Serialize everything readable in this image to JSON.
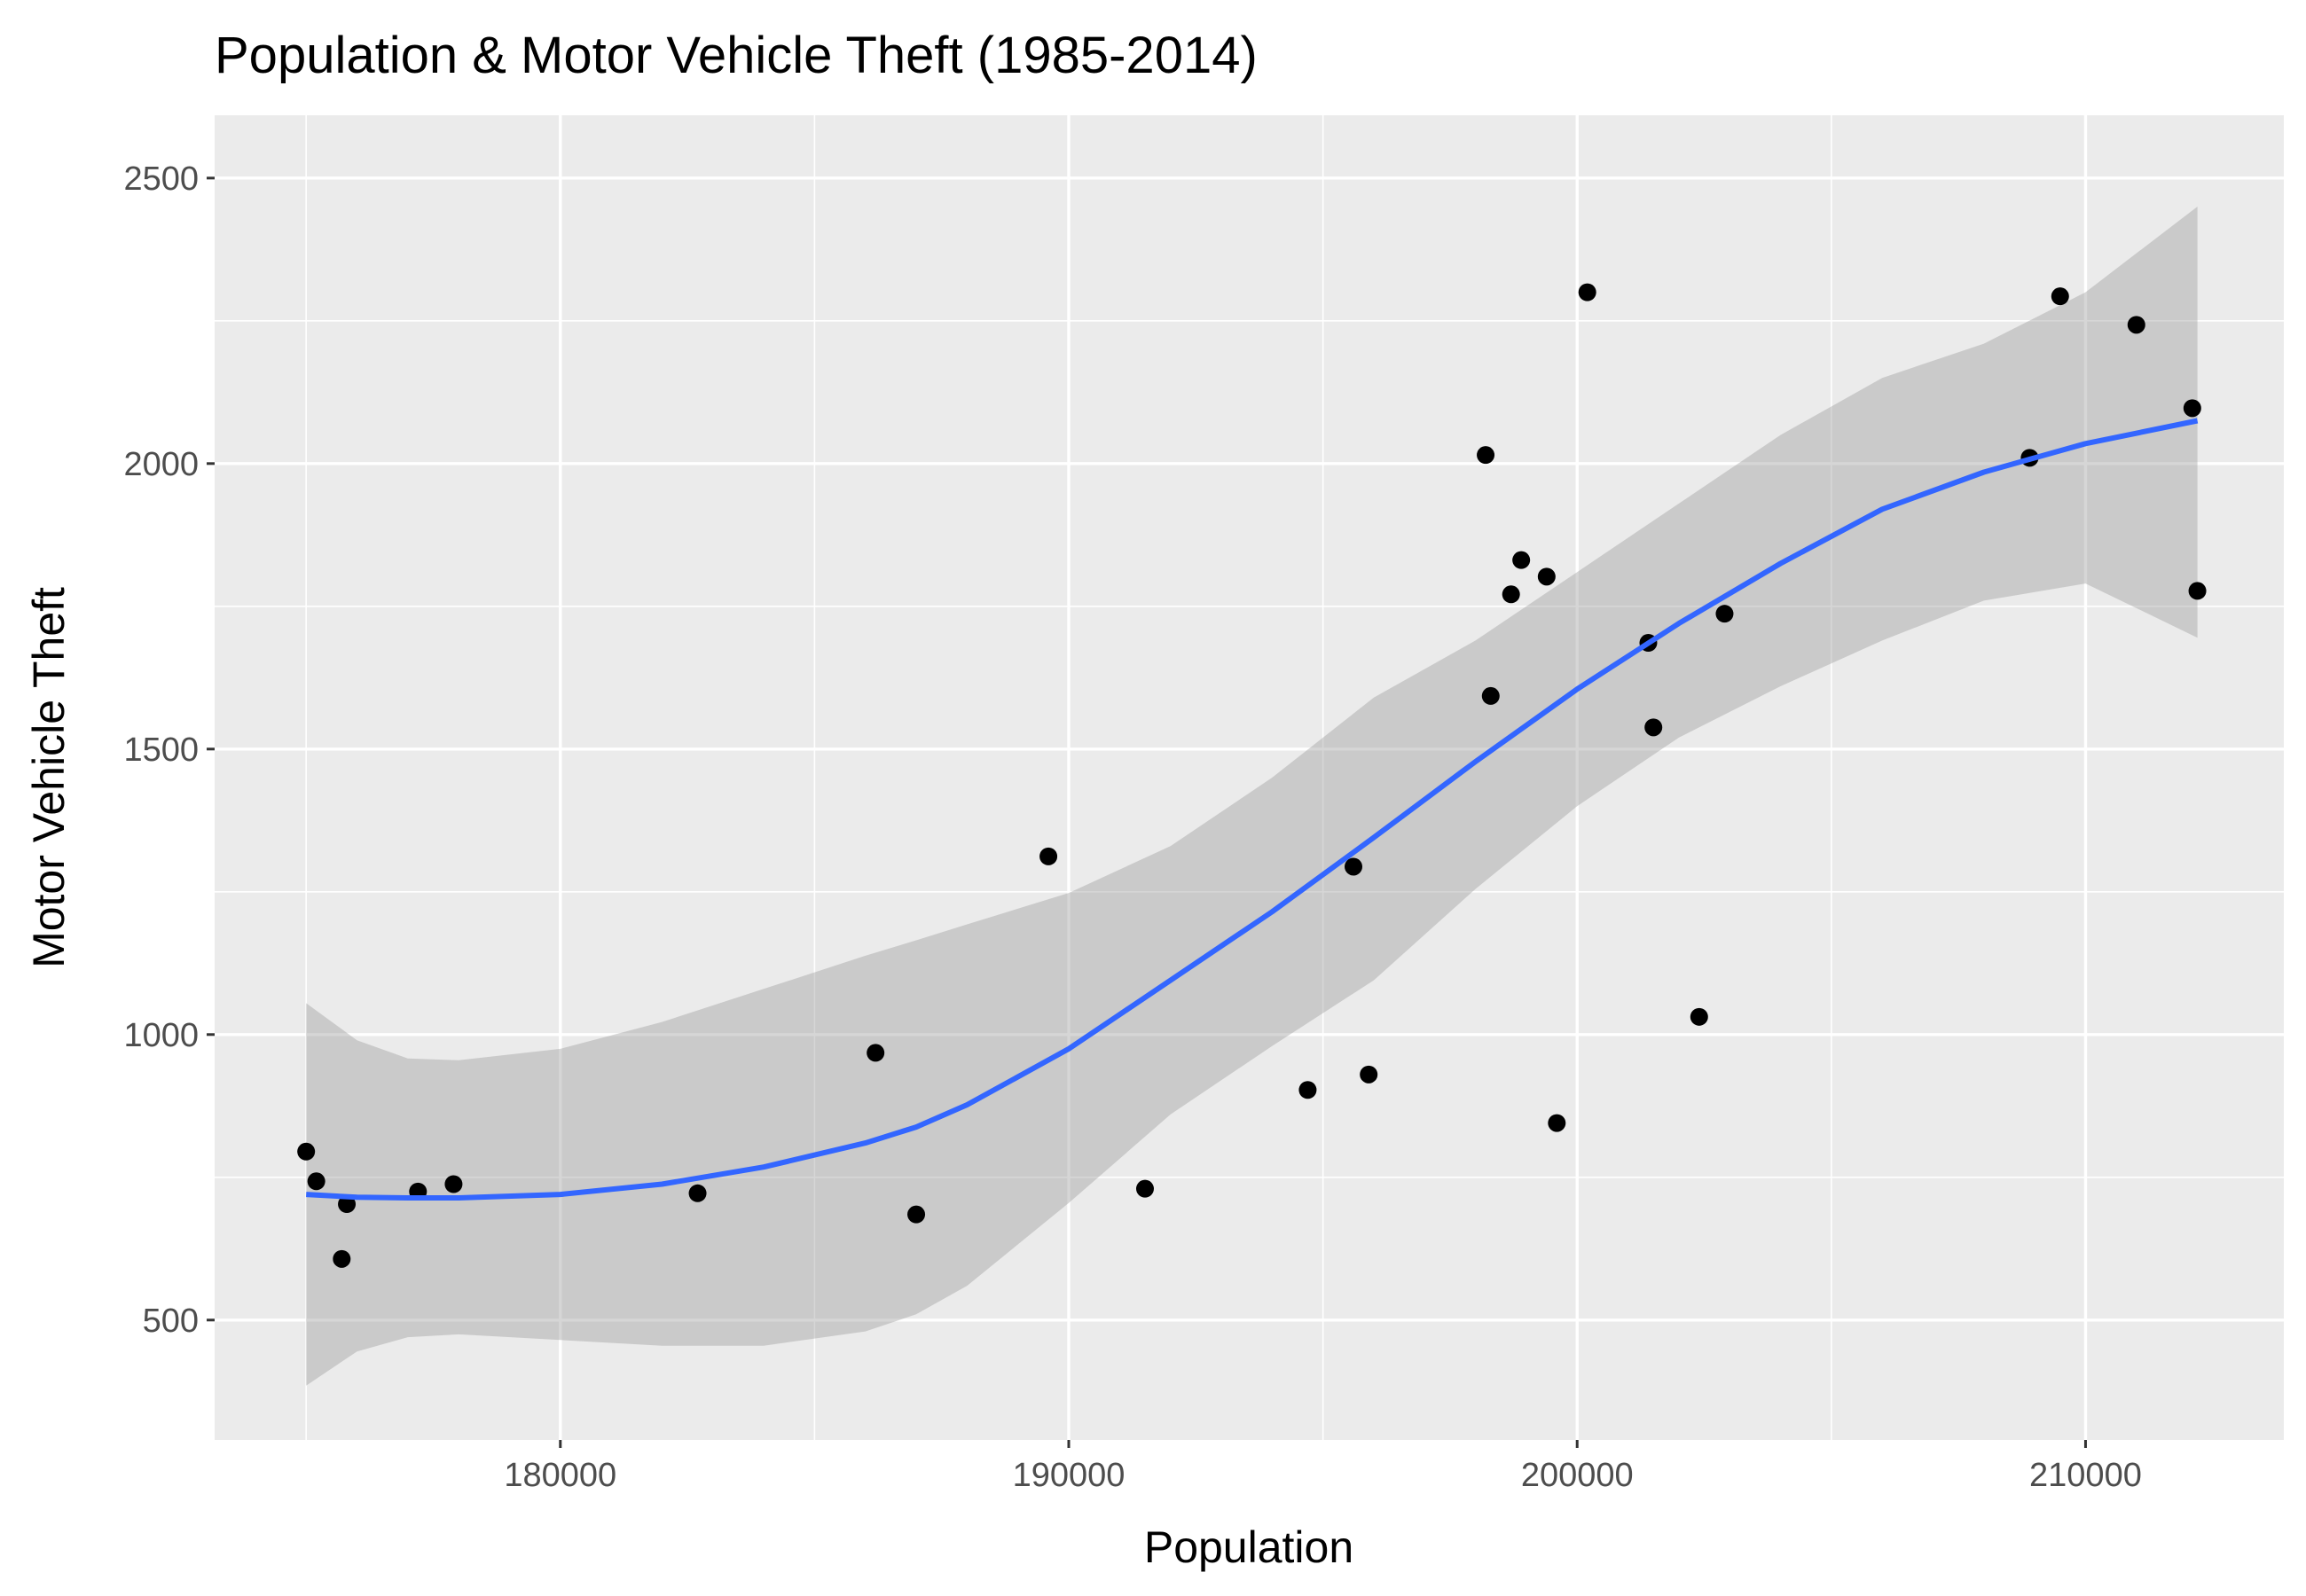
{
  "chart_data": {
    "type": "scatter",
    "title": "Population & Motor Vehicle Theft (1985-2014)",
    "xlabel": "Population",
    "ylabel": "Motor Vehicle Theft",
    "xlim": [
      173200,
      213900
    ],
    "ylim": [
      290,
      2610
    ],
    "xticks": [
      180000,
      190000,
      200000,
      210000
    ],
    "xtick_labels": [
      "180000",
      "190000",
      "200000",
      "210000"
    ],
    "xminor": [
      175000,
      185000,
      195000,
      205000
    ],
    "yticks": [
      500,
      1000,
      1500,
      2000,
      2500
    ],
    "ytick_labels": [
      "500",
      "1000",
      "1500",
      "2000",
      "2500"
    ],
    "yminor": [
      750,
      1250,
      1750,
      2250
    ],
    "grid": true,
    "panel_color": "#ebebeb",
    "grid_color": "#ffffff",
    "point_color": "#000000",
    "smooth_color": "#3366ff",
    "band_color": "#999999",
    "points": [
      {
        "x": 175000,
        "y": 795
      },
      {
        "x": 175200,
        "y": 743
      },
      {
        "x": 175700,
        "y": 607
      },
      {
        "x": 175800,
        "y": 703
      },
      {
        "x": 177200,
        "y": 725
      },
      {
        "x": 177900,
        "y": 738
      },
      {
        "x": 182700,
        "y": 722
      },
      {
        "x": 186200,
        "y": 968
      },
      {
        "x": 187000,
        "y": 685
      },
      {
        "x": 189600,
        "y": 1312
      },
      {
        "x": 191500,
        "y": 730
      },
      {
        "x": 194700,
        "y": 903
      },
      {
        "x": 195600,
        "y": 1294
      },
      {
        "x": 195900,
        "y": 930
      },
      {
        "x": 198200,
        "y": 2015
      },
      {
        "x": 198300,
        "y": 1593
      },
      {
        "x": 198700,
        "y": 1771
      },
      {
        "x": 198900,
        "y": 1831
      },
      {
        "x": 199400,
        "y": 1802
      },
      {
        "x": 199600,
        "y": 845
      },
      {
        "x": 200200,
        "y": 2300
      },
      {
        "x": 201400,
        "y": 1686
      },
      {
        "x": 201500,
        "y": 1538
      },
      {
        "x": 202400,
        "y": 1031
      },
      {
        "x": 202900,
        "y": 1737
      },
      {
        "x": 208900,
        "y": 2010
      },
      {
        "x": 209500,
        "y": 2293
      },
      {
        "x": 211000,
        "y": 2243
      },
      {
        "x": 212100,
        "y": 2097
      },
      {
        "x": 212200,
        "y": 1777
      }
    ],
    "smooth": [
      {
        "x": 175000,
        "y": 720,
        "lo": 385,
        "hi": 1055
      },
      {
        "x": 176000,
        "y": 715,
        "lo": 445,
        "hi": 990
      },
      {
        "x": 177000,
        "y": 714,
        "lo": 470,
        "hi": 958
      },
      {
        "x": 178000,
        "y": 714,
        "lo": 475,
        "hi": 955
      },
      {
        "x": 180000,
        "y": 720,
        "lo": 465,
        "hi": 975
      },
      {
        "x": 182000,
        "y": 738,
        "lo": 455,
        "hi": 1022
      },
      {
        "x": 184000,
        "y": 768,
        "lo": 455,
        "hi": 1080
      },
      {
        "x": 186000,
        "y": 810,
        "lo": 480,
        "hi": 1138
      },
      {
        "x": 187000,
        "y": 838,
        "lo": 510,
        "hi": 1165
      },
      {
        "x": 188000,
        "y": 877,
        "lo": 560,
        "hi": 1193
      },
      {
        "x": 190000,
        "y": 975,
        "lo": 705,
        "hi": 1248
      },
      {
        "x": 192000,
        "y": 1095,
        "lo": 860,
        "hi": 1330
      },
      {
        "x": 194000,
        "y": 1215,
        "lo": 980,
        "hi": 1450
      },
      {
        "x": 196000,
        "y": 1345,
        "lo": 1095,
        "hi": 1590
      },
      {
        "x": 198000,
        "y": 1478,
        "lo": 1255,
        "hi": 1690
      },
      {
        "x": 200000,
        "y": 1605,
        "lo": 1400,
        "hi": 1810
      },
      {
        "x": 202000,
        "y": 1720,
        "lo": 1520,
        "hi": 1930
      },
      {
        "x": 204000,
        "y": 1825,
        "lo": 1610,
        "hi": 2050
      },
      {
        "x": 206000,
        "y": 1920,
        "lo": 1690,
        "hi": 2150
      },
      {
        "x": 208000,
        "y": 1985,
        "lo": 1760,
        "hi": 2210
      },
      {
        "x": 210000,
        "y": 2035,
        "lo": 1790,
        "hi": 2300
      },
      {
        "x": 212200,
        "y": 2075,
        "lo": 1695,
        "hi": 2450
      }
    ]
  }
}
